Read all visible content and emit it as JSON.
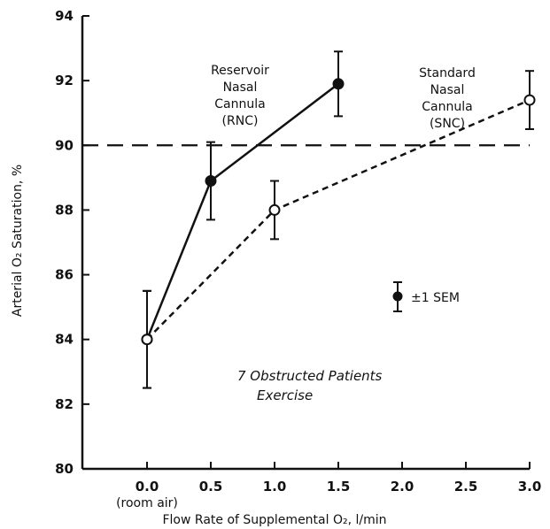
{
  "chart_data": {
    "type": "line",
    "xlabel": "Flow Rate of Supplemental O₂, l/min",
    "ylabel": "Arterial O₂ Saturation, %",
    "ylim": [
      80,
      94
    ],
    "y_ticks": [
      "80",
      "82",
      "84",
      "86",
      "88",
      "90",
      "92",
      "94"
    ],
    "x_ticks": [
      "0.0",
      "0.5",
      "1.0",
      "1.5",
      "2.0",
      "2.5",
      "3.0"
    ],
    "x_tick_sublabel": "(room air)",
    "reference_line": {
      "y": 90,
      "style": "dashed"
    },
    "grid": false,
    "series": [
      {
        "name": "Reservoir Nasal Cannula (RNC)",
        "marker": "filled-circle",
        "line_style": "solid",
        "x": [
          0.0,
          0.5,
          1.5
        ],
        "y": [
          84.0,
          88.9,
          91.9
        ],
        "err": [
          1.5,
          1.2,
          1.0
        ]
      },
      {
        "name": "Standard Nasal Cannula (SNC)",
        "marker": "open-circle",
        "line_style": "dashed",
        "x": [
          0.0,
          1.0,
          3.0
        ],
        "y": [
          84.0,
          88.0,
          91.4
        ],
        "err": [
          1.5,
          0.9,
          0.9
        ]
      }
    ],
    "annotations": {
      "rnc": [
        "Reservoir",
        "Nasal",
        "Cannula",
        "(RNC)"
      ],
      "snc": [
        "Standard",
        "Nasal",
        "Cannula",
        "(SNC)"
      ],
      "sem_legend": "±1 SEM",
      "note": [
        "7 Obstructed Patients",
        "Exercise"
      ]
    }
  }
}
